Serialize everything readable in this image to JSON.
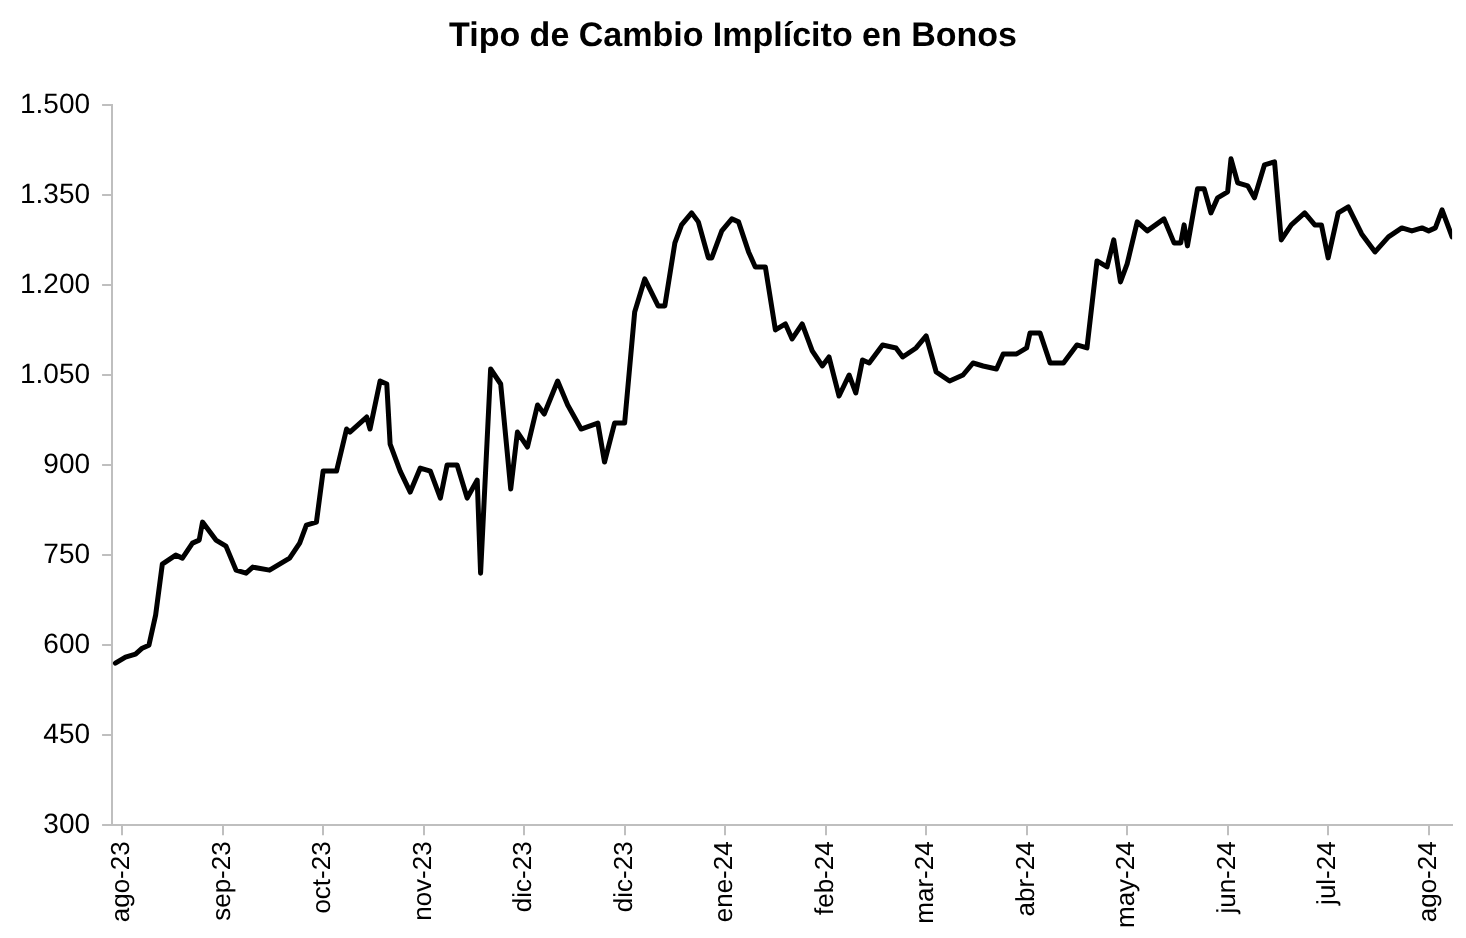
{
  "chart_data": {
    "type": "line",
    "title": "Tipo de Cambio Implícito en Bonos",
    "x": [
      "2023-08-01",
      "2023-08-04",
      "2023-08-07",
      "2023-08-09",
      "2023-08-11",
      "2023-08-13",
      "2023-08-15",
      "2023-08-19",
      "2023-08-21",
      "2023-08-24",
      "2023-08-26",
      "2023-08-27",
      "2023-08-31",
      "2023-09-03",
      "2023-09-06",
      "2023-09-09",
      "2023-09-11",
      "2023-09-16",
      "2023-09-22",
      "2023-09-25",
      "2023-09-27",
      "2023-09-30",
      "2023-10-02",
      "2023-10-06",
      "2023-10-09",
      "2023-10-10",
      "2023-10-13",
      "2023-10-15",
      "2023-10-16",
      "2023-10-19",
      "2023-10-21",
      "2023-10-22",
      "2023-10-25",
      "2023-10-28",
      "2023-10-31",
      "2023-11-03",
      "2023-11-06",
      "2023-11-08",
      "2023-11-11",
      "2023-11-14",
      "2023-11-17",
      "2023-11-18",
      "2023-11-21",
      "2023-11-24",
      "2023-11-27",
      "2023-11-29",
      "2023-12-02",
      "2023-12-05",
      "2023-12-07",
      "2023-12-11",
      "2023-12-14",
      "2023-12-18",
      "2023-12-23",
      "2023-12-25",
      "2023-12-28",
      "2023-12-31",
      "2024-01-03",
      "2024-01-06",
      "2024-01-10",
      "2024-01-12",
      "2024-01-15",
      "2024-01-17",
      "2024-01-20",
      "2024-01-22",
      "2024-01-25",
      "2024-01-26",
      "2024-01-29",
      "2024-02-01",
      "2024-02-03",
      "2024-02-06",
      "2024-02-08",
      "2024-02-11",
      "2024-02-14",
      "2024-02-17",
      "2024-02-19",
      "2024-02-22",
      "2024-02-25",
      "2024-02-28",
      "2024-03-01",
      "2024-03-04",
      "2024-03-07",
      "2024-03-09",
      "2024-03-11",
      "2024-03-13",
      "2024-03-17",
      "2024-03-21",
      "2024-03-23",
      "2024-03-27",
      "2024-03-30",
      "2024-04-02",
      "2024-04-06",
      "2024-04-10",
      "2024-04-13",
      "2024-04-16",
      "2024-04-20",
      "2024-04-22",
      "2024-04-26",
      "2024-04-29",
      "2024-04-30",
      "2024-05-03",
      "2024-05-06",
      "2024-05-10",
      "2024-05-14",
      "2024-05-17",
      "2024-05-20",
      "2024-05-23",
      "2024-05-25",
      "2024-05-27",
      "2024-05-29",
      "2024-06-01",
      "2024-06-04",
      "2024-06-09",
      "2024-06-12",
      "2024-06-14",
      "2024-06-15",
      "2024-06-16",
      "2024-06-19",
      "2024-06-21",
      "2024-06-23",
      "2024-06-25",
      "2024-06-28",
      "2024-06-29",
      "2024-07-01",
      "2024-07-04",
      "2024-07-06",
      "2024-07-09",
      "2024-07-12",
      "2024-07-14",
      "2024-07-17",
      "2024-07-21",
      "2024-07-24",
      "2024-07-26",
      "2024-07-28",
      "2024-07-31",
      "2024-08-03",
      "2024-08-07",
      "2024-08-11",
      "2024-08-15",
      "2024-08-19",
      "2024-08-22",
      "2024-08-25",
      "2024-08-27",
      "2024-08-29",
      "2024-08-31",
      "2024-09-03"
    ],
    "series": [
      {
        "color": "#000000",
        "values": [
          570,
          580,
          585,
          595,
          600,
          650,
          735,
          750,
          745,
          770,
          775,
          805,
          775,
          765,
          725,
          720,
          730,
          725,
          745,
          770,
          800,
          805,
          890,
          890,
          960,
          955,
          970,
          980,
          960,
          1040,
          1035,
          935,
          890,
          855,
          895,
          890,
          845,
          900,
          900,
          845,
          875,
          720,
          1060,
          1035,
          860,
          955,
          930,
          1000,
          985,
          1040,
          1000,
          960,
          970,
          905,
          970,
          970,
          1155,
          1210,
          1165,
          1165,
          1270,
          1300,
          1320,
          1305,
          1245,
          1245,
          1290,
          1310,
          1305,
          1255,
          1230,
          1230,
          1125,
          1135,
          1110,
          1135,
          1090,
          1065,
          1080,
          1015,
          1050,
          1020,
          1075,
          1070,
          1100,
          1095,
          1080,
          1095,
          1115,
          1055,
          1040,
          1050,
          1070,
          1065,
          1060,
          1085,
          1085,
          1095,
          1120,
          1120,
          1070,
          1070,
          1100,
          1095,
          1240,
          1230,
          1275,
          1205,
          1235,
          1305,
          1290,
          1310,
          1270,
          1270,
          1300,
          1265,
          1360,
          1360,
          1320,
          1345,
          1355,
          1410,
          1370,
          1365,
          1345,
          1400,
          1405,
          1275,
          1300,
          1320,
          1300,
          1300,
          1245,
          1320,
          1330,
          1285,
          1255,
          1280,
          1295,
          1290,
          1295,
          1290,
          1295,
          1325,
          1280
        ]
      }
    ],
    "xlim": [
      "2023-07-31",
      "2024-09-03"
    ],
    "xticks": [
      {
        "value": "2023-08-03",
        "label": "ago-23"
      },
      {
        "value": "2023-09-02",
        "label": "sep-23"
      },
      {
        "value": "2023-10-02",
        "label": "oct-23"
      },
      {
        "value": "2023-11-01",
        "label": "nov-23"
      },
      {
        "value": "2023-12-01",
        "label": "dic-23"
      },
      {
        "value": "2023-12-31",
        "label": "dic-23"
      },
      {
        "value": "2024-01-30",
        "label": "ene-24"
      },
      {
        "value": "2024-02-29",
        "label": "feb-24"
      },
      {
        "value": "2024-03-30",
        "label": "mar-24"
      },
      {
        "value": "2024-04-29",
        "label": "abr-24"
      },
      {
        "value": "2024-05-29",
        "label": "may-24"
      },
      {
        "value": "2024-06-28",
        "label": "jun-24"
      },
      {
        "value": "2024-07-28",
        "label": "jul-24"
      },
      {
        "value": "2024-08-27",
        "label": "ago-24"
      }
    ],
    "ylim": [
      300,
      1500
    ],
    "yticks": [
      {
        "value": 300,
        "label": "300"
      },
      {
        "value": 450,
        "label": "450"
      },
      {
        "value": 600,
        "label": "600"
      },
      {
        "value": 750,
        "label": "750"
      },
      {
        "value": 900,
        "label": "900"
      },
      {
        "value": 1050,
        "label": "1.050"
      },
      {
        "value": 1200,
        "label": "1.200"
      },
      {
        "value": 1350,
        "label": "1.350"
      },
      {
        "value": 1500,
        "label": "1.500"
      }
    ],
    "grid": false,
    "legend": false,
    "marker": "none",
    "line_style": "solid"
  }
}
